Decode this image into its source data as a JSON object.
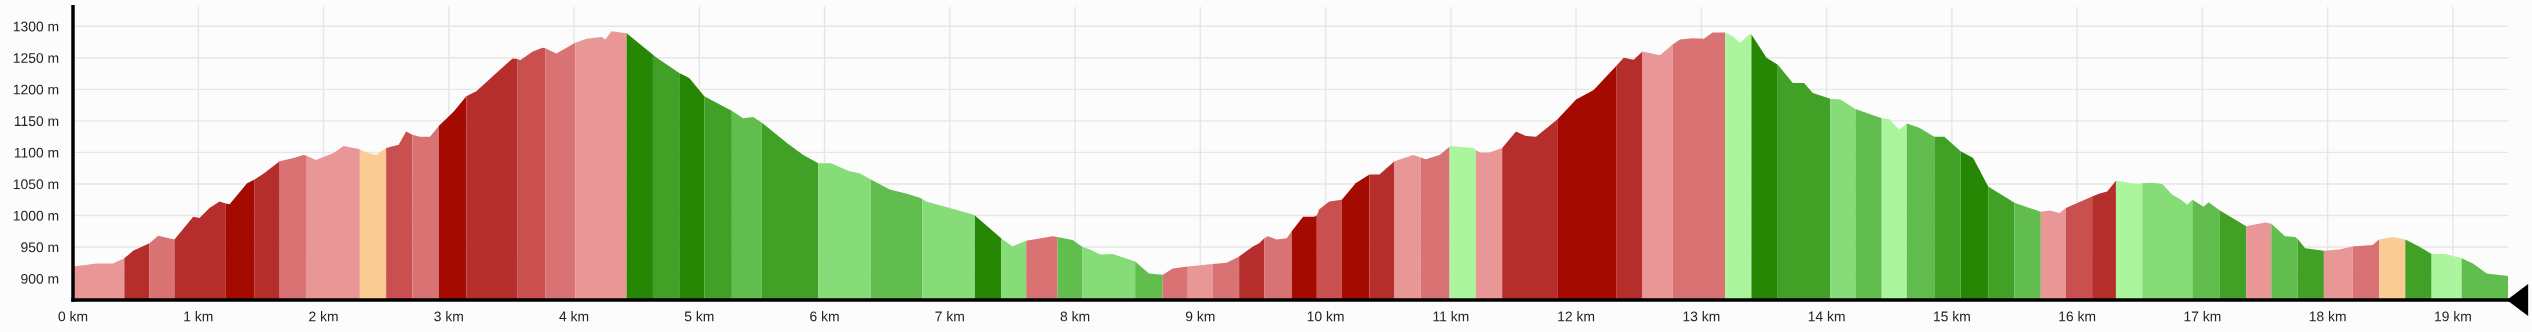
{
  "chart_data": {
    "type": "area",
    "series": [
      {
        "color": "#e99696",
        "x": [
          0.0,
          0.19,
          0.32,
          0.41
        ],
        "values": [
          919,
          924,
          924,
          932
        ]
      },
      {
        "color": "#b52e2b",
        "x": [
          0.41,
          0.48,
          0.61
        ],
        "values": [
          932,
          944,
          956
        ]
      },
      {
        "color": "#d97373",
        "x": [
          0.61,
          0.68,
          0.81
        ],
        "values": [
          956,
          968,
          962
        ]
      },
      {
        "color": "#b52e2b",
        "x": [
          0.81,
          0.96,
          1.01,
          1.09,
          1.17,
          1.22
        ],
        "values": [
          962,
          998,
          996,
          1012,
          1022,
          1019
        ]
      },
      {
        "color": "#a50a00",
        "x": [
          1.22,
          1.25,
          1.39,
          1.45
        ],
        "values": [
          1019,
          1018,
          1051,
          1057
        ]
      },
      {
        "color": "#b52e2b",
        "x": [
          1.45,
          1.52,
          1.65
        ],
        "values": [
          1057,
          1066,
          1086
        ]
      },
      {
        "color": "#d97373",
        "x": [
          1.65,
          1.76,
          1.84,
          1.86
        ],
        "values": [
          1086,
          1091,
          1096,
          1095
        ]
      },
      {
        "color": "#e99696",
        "x": [
          1.86,
          1.94,
          2.08,
          2.16,
          2.29
        ],
        "values": [
          1095,
          1088,
          1099,
          1110,
          1105
        ]
      },
      {
        "color": "#facc94",
        "x": [
          2.29,
          2.34,
          2.42,
          2.5
        ],
        "values": [
          1105,
          1100,
          1096,
          1107
        ]
      },
      {
        "color": "#c9504f",
        "x": [
          2.5,
          2.6,
          2.66,
          2.71
        ],
        "values": [
          1107,
          1112,
          1133,
          1128
        ]
      },
      {
        "color": "#d97373",
        "x": [
          2.71,
          2.77,
          2.85,
          2.92
        ],
        "values": [
          1128,
          1125,
          1125,
          1142
        ]
      },
      {
        "color": "#a50a00",
        "x": [
          2.92,
          3.04,
          3.14
        ],
        "values": [
          1142,
          1165,
          1189
        ]
      },
      {
        "color": "#b52e2b",
        "x": [
          3.14,
          3.22,
          3.38,
          3.51,
          3.55
        ],
        "values": [
          1189,
          1197,
          1226,
          1249,
          1248
        ]
      },
      {
        "color": "#c9504f",
        "x": [
          3.55,
          3.57,
          3.67,
          3.75,
          3.77
        ],
        "values": [
          1248,
          1246,
          1260,
          1266,
          1265
        ]
      },
      {
        "color": "#d97373",
        "x": [
          3.77,
          3.86,
          3.94,
          4.01
        ],
        "values": [
          1265,
          1257,
          1266,
          1274
        ]
      },
      {
        "color": "#e99696",
        "x": [
          4.01,
          4.1,
          4.22,
          4.25,
          4.3,
          4.42
        ],
        "values": [
          1274,
          1280,
          1283,
          1279,
          1292,
          1289
        ]
      },
      {
        "color": "#268704",
        "x": [
          4.42,
          4.53,
          4.63
        ],
        "values": [
          1289,
          1271,
          1255
        ]
      },
      {
        "color": "#41a127",
        "x": [
          4.63,
          4.66,
          4.84
        ],
        "values": [
          1255,
          1250,
          1226
        ]
      },
      {
        "color": "#268704",
        "x": [
          4.84,
          4.92,
          5.04
        ],
        "values": [
          1226,
          1218,
          1189
        ]
      },
      {
        "color": "#41a127",
        "x": [
          5.04,
          5.22,
          5.26
        ],
        "values": [
          1189,
          1170,
          1166
        ]
      },
      {
        "color": "#62bd4f",
        "x": [
          5.26,
          5.35,
          5.43,
          5.5
        ],
        "values": [
          1166,
          1154,
          1156,
          1147
        ]
      },
      {
        "color": "#41a127",
        "x": [
          5.5,
          5.7,
          5.83,
          5.95
        ],
        "values": [
          1147,
          1115,
          1096,
          1083
        ]
      },
      {
        "color": "#86dc76",
        "x": [
          5.95,
          6.05,
          6.2,
          6.28,
          6.37
        ],
        "values": [
          1083,
          1083,
          1070,
          1067,
          1057
        ]
      },
      {
        "color": "#62bd4f",
        "x": [
          6.37,
          6.52,
          6.65,
          6.76,
          6.78
        ],
        "values": [
          1057,
          1041,
          1035,
          1028,
          1026
        ]
      },
      {
        "color": "#86dc76",
        "x": [
          6.78,
          6.81,
          7.0,
          7.19,
          7.2
        ],
        "values": [
          1026,
          1022,
          1012,
          1001,
          1000
        ]
      },
      {
        "color": "#268704",
        "x": [
          7.2,
          7.41
        ],
        "values": [
          1000,
          964
        ]
      },
      {
        "color": "#86dc76",
        "x": [
          7.41,
          7.5,
          7.61
        ],
        "values": [
          964,
          951,
          960
        ]
      },
      {
        "color": "#d97373",
        "x": [
          7.61,
          7.82,
          7.86
        ],
        "values": [
          960,
          967,
          966
        ]
      },
      {
        "color": "#62bd4f",
        "x": [
          7.86,
          7.98,
          8.06
        ],
        "values": [
          966,
          961,
          950
        ]
      },
      {
        "color": "#86dc76",
        "x": [
          8.06,
          8.12,
          8.2,
          8.3,
          8.48
        ],
        "values": [
          950,
          946,
          938,
          939,
          927
        ]
      },
      {
        "color": "#62bd4f",
        "x": [
          8.48,
          8.59,
          8.7
        ],
        "values": [
          927,
          908,
          906
        ]
      },
      {
        "color": "#d97373",
        "x": [
          8.7,
          8.78,
          8.9
        ],
        "values": [
          906,
          916,
          919
        ]
      },
      {
        "color": "#e99696",
        "x": [
          8.9,
          9.1
        ],
        "values": [
          919,
          923
        ]
      },
      {
        "color": "#d97373",
        "x": [
          9.1,
          9.21,
          9.31
        ],
        "values": [
          923,
          925,
          935
        ]
      },
      {
        "color": "#b52e2b",
        "x": [
          9.31,
          9.42,
          9.47,
          9.51
        ],
        "values": [
          935,
          951,
          956,
          964
        ]
      },
      {
        "color": "#d97373",
        "x": [
          9.51,
          9.54,
          9.61,
          9.69,
          9.73
        ],
        "values": [
          964,
          967,
          962,
          964,
          975
        ]
      },
      {
        "color": "#a50a00",
        "x": [
          9.73,
          9.82,
          9.91,
          9.93
        ],
        "values": [
          975,
          998,
          998,
          1000
        ]
      },
      {
        "color": "#c9504f",
        "x": [
          9.93,
          9.95,
          10.03,
          10.13
        ],
        "values": [
          1000,
          1010,
          1022,
          1025
        ]
      },
      {
        "color": "#a50a00",
        "x": [
          10.13,
          10.24,
          10.35
        ],
        "values": [
          1025,
          1051,
          1065
        ]
      },
      {
        "color": "#b52e2b",
        "x": [
          10.35,
          10.43,
          10.55
        ],
        "values": [
          1065,
          1065,
          1086
        ]
      },
      {
        "color": "#e99696",
        "x": [
          10.55,
          10.7,
          10.76
        ],
        "values": [
          1086,
          1096,
          1092
        ]
      },
      {
        "color": "#d97373",
        "x": [
          10.76,
          10.8,
          10.91,
          10.99
        ],
        "values": [
          1092,
          1089,
          1096,
          1109
        ]
      },
      {
        "color": "#abf59c",
        "x": [
          10.99,
          11.0,
          11.18,
          11.2
        ],
        "values": [
          1109,
          1110,
          1107,
          1104
        ]
      },
      {
        "color": "#e99696",
        "x": [
          11.2,
          11.23,
          11.31,
          11.41
        ],
        "values": [
          1104,
          1100,
          1100,
          1107
        ]
      },
      {
        "color": "#b52e2b",
        "x": [
          11.41,
          11.52,
          11.6,
          11.68,
          11.85
        ],
        "values": [
          1107,
          1133,
          1126,
          1125,
          1152
        ]
      },
      {
        "color": "#a50a00",
        "x": [
          11.85,
          12.0,
          12.14,
          12.32
        ],
        "values": [
          1152,
          1184,
          1199,
          1237
        ]
      },
      {
        "color": "#b52e2b",
        "x": [
          12.32,
          12.38,
          12.46,
          12.53
        ],
        "values": [
          1237,
          1250,
          1247,
          1260
        ]
      },
      {
        "color": "#e99696",
        "x": [
          12.53,
          12.67,
          12.77
        ],
        "values": [
          1260,
          1254,
          1271
        ]
      },
      {
        "color": "#d97373",
        "x": [
          12.77,
          12.83,
          12.93,
          13.02,
          13.09,
          13.19
        ],
        "values": [
          1271,
          1279,
          1281,
          1280,
          1290,
          1290
        ]
      },
      {
        "color": "#abf59c",
        "x": [
          13.19,
          13.25,
          13.31,
          13.39,
          13.4
        ],
        "values": [
          1290,
          1284,
          1274,
          1288,
          1287
        ]
      },
      {
        "color": "#268704",
        "x": [
          13.4,
          13.52,
          13.61
        ],
        "values": [
          1287,
          1250,
          1239
        ]
      },
      {
        "color": "#41a127",
        "x": [
          13.61,
          13.73,
          13.82,
          13.89,
          14.03
        ],
        "values": [
          1239,
          1210,
          1210,
          1194,
          1185
        ]
      },
      {
        "color": "#86dc76",
        "x": [
          14.03,
          14.11,
          14.23
        ],
        "values": [
          1185,
          1184,
          1169
        ]
      },
      {
        "color": "#62bd4f",
        "x": [
          14.23,
          14.44
        ],
        "values": [
          1169,
          1154
        ]
      },
      {
        "color": "#abf59c",
        "x": [
          14.44,
          14.5,
          14.58,
          14.64
        ],
        "values": [
          1154,
          1153,
          1136,
          1146
        ]
      },
      {
        "color": "#62bd4f",
        "x": [
          14.64,
          14.74,
          14.86
        ],
        "values": [
          1146,
          1139,
          1125
        ]
      },
      {
        "color": "#41a127",
        "x": [
          14.86,
          14.94,
          15.07
        ],
        "values": [
          1125,
          1125,
          1102
        ]
      },
      {
        "color": "#268704",
        "x": [
          15.07,
          15.17,
          15.29
        ],
        "values": [
          1102,
          1091,
          1046
        ]
      },
      {
        "color": "#41a127",
        "x": [
          15.29,
          15.5
        ],
        "values": [
          1046,
          1020
        ]
      },
      {
        "color": "#62bd4f",
        "x": [
          15.5,
          15.62,
          15.71
        ],
        "values": [
          1020,
          1012,
          1006
        ]
      },
      {
        "color": "#e99696",
        "x": [
          15.71,
          15.78,
          15.86,
          15.91
        ],
        "values": [
          1006,
          1008,
          1004,
          1012
        ]
      },
      {
        "color": "#c9504f",
        "x": [
          15.91,
          16.12
        ],
        "values": [
          1012,
          1030
        ]
      },
      {
        "color": "#b52e2b",
        "x": [
          16.12,
          16.18,
          16.24,
          16.31
        ],
        "values": [
          1030,
          1035,
          1038,
          1055
        ]
      },
      {
        "color": "#abf59c",
        "x": [
          16.31,
          16.41,
          16.49,
          16.52
        ],
        "values": [
          1055,
          1052,
          1050,
          1051
        ]
      },
      {
        "color": "#86dc76",
        "x": [
          16.52,
          16.6,
          16.68,
          16.76,
          16.83,
          16.88,
          16.92
        ],
        "values": [
          1051,
          1052,
          1050,
          1033,
          1025,
          1017,
          1025
        ]
      },
      {
        "color": "#62bd4f",
        "x": [
          16.92,
          17.01,
          17.05,
          17.14
        ],
        "values": [
          1025,
          1014,
          1021,
          1008
        ]
      },
      {
        "color": "#41a127",
        "x": [
          17.14,
          17.24,
          17.35
        ],
        "values": [
          1008,
          996,
          983
        ]
      },
      {
        "color": "#e99696",
        "x": [
          17.35,
          17.4,
          17.5,
          17.55
        ],
        "values": [
          983,
          985,
          989,
          987
        ]
      },
      {
        "color": "#62bd4f",
        "x": [
          17.55,
          17.66,
          17.74,
          17.76
        ],
        "values": [
          987,
          967,
          966,
          963
        ]
      },
      {
        "color": "#41a127",
        "x": [
          17.76,
          17.82,
          17.97
        ],
        "values": [
          963,
          948,
          944
        ]
      },
      {
        "color": "#e99696",
        "x": [
          17.97,
          18.09,
          18.2
        ],
        "values": [
          944,
          946,
          951
        ]
      },
      {
        "color": "#d97373",
        "x": [
          18.2,
          18.36,
          18.41
        ],
        "values": [
          951,
          953,
          962
        ]
      },
      {
        "color": "#facc94",
        "x": [
          18.41,
          18.52,
          18.62
        ],
        "values": [
          962,
          966,
          962
        ]
      },
      {
        "color": "#41a127",
        "x": [
          18.62,
          18.73,
          18.83
        ],
        "values": [
          962,
          951,
          939
        ]
      },
      {
        "color": "#abf59c",
        "x": [
          18.83,
          18.94,
          19.07
        ],
        "values": [
          939,
          939,
          932
        ]
      },
      {
        "color": "#62bd4f",
        "x": [
          19.07,
          19.16,
          19.27,
          19.44
        ],
        "values": [
          932,
          924,
          908,
          904
        ]
      }
    ],
    "xlim": [
      0,
      19.44
    ],
    "ylim": [
      866,
      1331
    ],
    "xticks": [
      {
        "value": 0,
        "label": "0 km"
      },
      {
        "value": 1,
        "label": "1 km"
      },
      {
        "value": 2,
        "label": "2 km"
      },
      {
        "value": 3,
        "label": "3 km"
      },
      {
        "value": 4,
        "label": "4 km"
      },
      {
        "value": 5,
        "label": "5 km"
      },
      {
        "value": 6,
        "label": "6 km"
      },
      {
        "value": 7,
        "label": "7 km"
      },
      {
        "value": 8,
        "label": "8 km"
      },
      {
        "value": 9,
        "label": "9 km"
      },
      {
        "value": 10,
        "label": "10 km"
      },
      {
        "value": 11,
        "label": "11 km"
      },
      {
        "value": 12,
        "label": "12 km"
      },
      {
        "value": 13,
        "label": "13 km"
      },
      {
        "value": 14,
        "label": "14 km"
      },
      {
        "value": 15,
        "label": "15 km"
      },
      {
        "value": 16,
        "label": "16 km"
      },
      {
        "value": 17,
        "label": "17 km"
      },
      {
        "value": 18,
        "label": "18 km"
      },
      {
        "value": 19,
        "label": "19 km"
      }
    ],
    "yticks": [
      {
        "value": 900,
        "label": "900 m"
      },
      {
        "value": 950,
        "label": "950 m"
      },
      {
        "value": 1000,
        "label": "1000 m"
      },
      {
        "value": 1050,
        "label": "1050 m"
      },
      {
        "value": 1100,
        "label": "1100 m"
      },
      {
        "value": 1150,
        "label": "1150 m"
      },
      {
        "value": 1200,
        "label": "1200 m"
      },
      {
        "value": 1250,
        "label": "1250 m"
      },
      {
        "value": 1300,
        "label": "1300 m"
      }
    ],
    "grid": true
  }
}
